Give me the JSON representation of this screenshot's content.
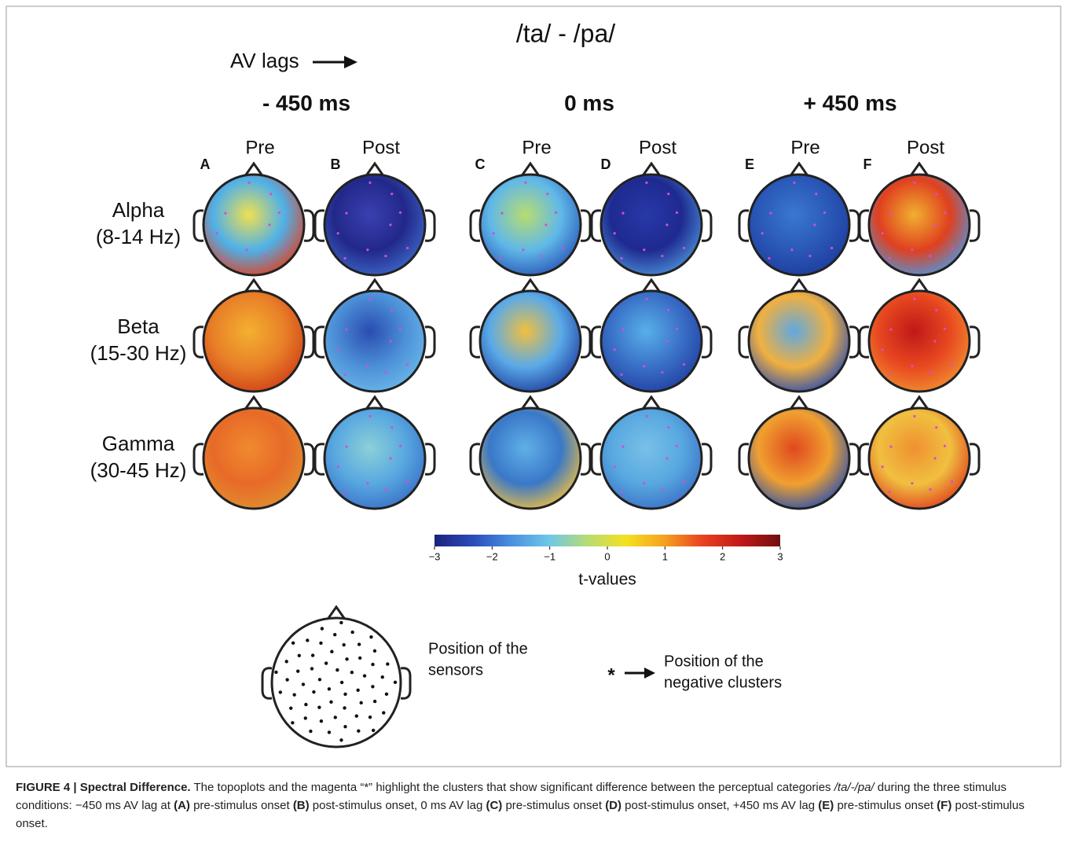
{
  "title": "/ta/ - /pa/",
  "av_lags": "AV lags",
  "lags": [
    "- 450 ms",
    "0 ms",
    "+ 450 ms"
  ],
  "conditions": [
    "Pre",
    "Post",
    "Pre",
    "Post",
    "Pre",
    "Post"
  ],
  "panels": [
    "A",
    "B",
    "C",
    "D",
    "E",
    "F"
  ],
  "bands": [
    {
      "name": "Alpha",
      "range": "(8-14 Hz)"
    },
    {
      "name": "Beta",
      "range": "(15-30 Hz)"
    },
    {
      "name": "Gamma",
      "range": "(30-45 Hz)"
    }
  ],
  "colorbar": {
    "label": "t-values",
    "lim": [
      -3,
      3
    ],
    "ticks": [
      {
        "value": -3,
        "label": "−3"
      },
      {
        "value": -2,
        "label": "−2"
      },
      {
        "value": -1,
        "label": "−1"
      },
      0,
      1,
      2,
      3
    ]
  },
  "legend": {
    "sensors": [
      "Position of the",
      "sensors"
    ],
    "clusters": [
      "Position of the",
      "negative clusters"
    ]
  },
  "caption": [
    "FIGURE 4 | Spectral Difference.",
    " The topoplots and the magenta “*” highlight the clusters that show significant difference between the perceptual categories ",
    "/ta/-/pa/",
    " during the three stimulus conditions: −450 ms AV lag at ",
    "(A)",
    " pre-stimulus onset ",
    "(B)",
    " post-stimulus onset, 0 ms AV lag ",
    "(C)",
    " pre-stimulus onset ",
    "(D)",
    " post-stimulus onset, +450 ms AV lag ",
    "(E)",
    " pre-stimulus onset ",
    "(F)",
    " post-stimulus onset."
  ]
}
